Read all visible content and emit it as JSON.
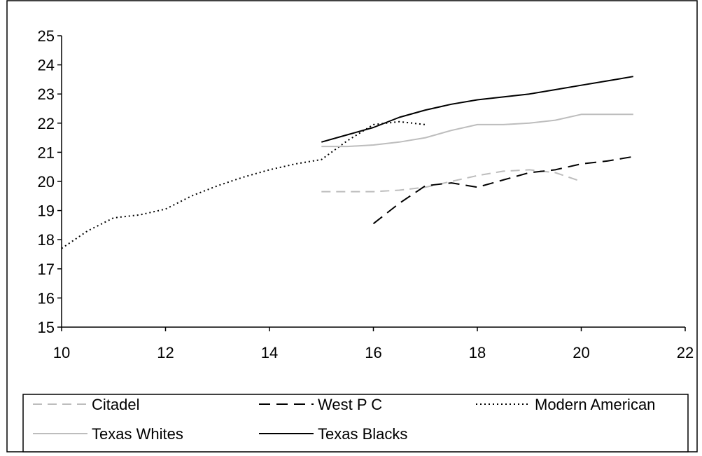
{
  "chart_data": {
    "type": "line",
    "title": "",
    "xlabel": "",
    "ylabel": "",
    "xlim": [
      10,
      22
    ],
    "ylim": [
      15,
      25
    ],
    "x_ticks": [
      "10",
      "12",
      "14",
      "16",
      "18",
      "20",
      "22"
    ],
    "y_ticks": [
      "15",
      "16",
      "17",
      "18",
      "19",
      "20",
      "21",
      "22",
      "23",
      "24",
      "25"
    ],
    "grid": false,
    "legend_position": "bottom",
    "series": [
      {
        "name": "Citadel",
        "color": "#bdbdbd",
        "dash": "dashed",
        "x": [
          15,
          15.5,
          16,
          16.5,
          17,
          17.5,
          18,
          18.5,
          19,
          19.5,
          20
        ],
        "y": [
          19.65,
          19.65,
          19.65,
          19.7,
          19.8,
          20.0,
          20.2,
          20.35,
          20.4,
          20.3,
          20.0
        ]
      },
      {
        "name": "West P C",
        "color": "#000000",
        "dash": "longdash",
        "x": [
          16,
          16.5,
          17,
          17.5,
          18,
          18.5,
          19,
          19.5,
          20,
          20.5,
          21
        ],
        "y": [
          18.55,
          19.25,
          19.85,
          19.95,
          19.8,
          20.05,
          20.3,
          20.4,
          20.6,
          20.7,
          20.85
        ]
      },
      {
        "name": "Modern American",
        "color": "#000000",
        "dash": "dotted",
        "x": [
          10,
          10.5,
          11,
          11.5,
          12,
          12.5,
          13,
          13.5,
          14,
          14.5,
          15,
          15.5,
          16,
          16.5,
          17
        ],
        "y": [
          17.7,
          18.3,
          18.75,
          18.85,
          19.05,
          19.5,
          19.85,
          20.15,
          20.4,
          20.6,
          20.75,
          21.4,
          21.95,
          22.05,
          21.95
        ]
      },
      {
        "name": "Texas Whites",
        "color": "#bdbdbd",
        "dash": "solid",
        "x": [
          15,
          15.5,
          16,
          16.5,
          17,
          17.5,
          18,
          18.5,
          19,
          19.5,
          20,
          20.5,
          21
        ],
        "y": [
          21.2,
          21.2,
          21.25,
          21.35,
          21.5,
          21.75,
          21.95,
          21.95,
          22.0,
          22.1,
          22.3,
          22.3,
          22.3
        ]
      },
      {
        "name": "Texas Blacks",
        "color": "#000000",
        "dash": "solid",
        "x": [
          15,
          15.5,
          16,
          16.5,
          17,
          17.5,
          18,
          18.5,
          19,
          19.5,
          20,
          20.5,
          21
        ],
        "y": [
          21.35,
          21.6,
          21.85,
          22.2,
          22.45,
          22.65,
          22.8,
          22.9,
          23.0,
          23.15,
          23.3,
          23.45,
          23.6
        ]
      }
    ]
  }
}
